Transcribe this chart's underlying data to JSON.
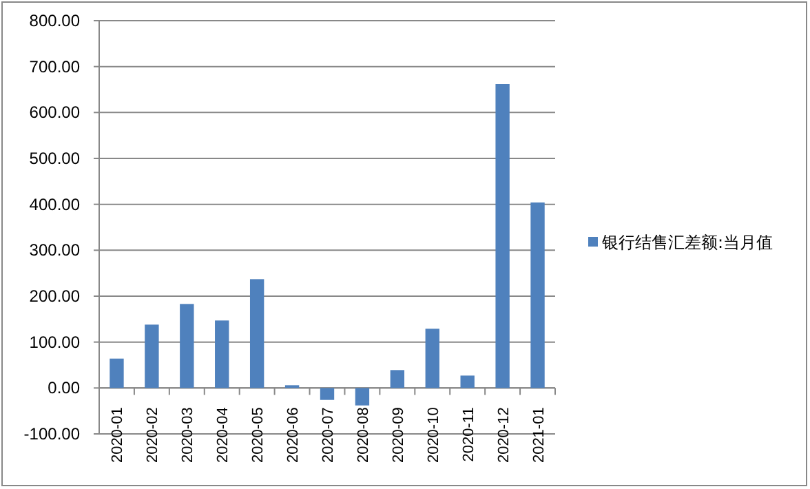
{
  "chart_data": {
    "type": "bar",
    "categories": [
      "2020-01",
      "2020-02",
      "2020-03",
      "2020-04",
      "2020-05",
      "2020-06",
      "2020-07",
      "2020-08",
      "2020-09",
      "2020-10",
      "2020-11",
      "2020-12",
      "2021-01"
    ],
    "series": [
      {
        "name": "银行结售汇差额:当月值",
        "color": "#4f81bd",
        "values": [
          64,
          138,
          183,
          147,
          237,
          6,
          -26,
          -38,
          39,
          129,
          27,
          662,
          404
        ]
      }
    ],
    "ylim": [
      -100,
      800
    ],
    "yticks": [
      {
        "value": -100,
        "label": "-100.00"
      },
      {
        "value": 0,
        "label": "0.00"
      },
      {
        "value": 100,
        "label": "100.00"
      },
      {
        "value": 200,
        "label": "200.00"
      },
      {
        "value": 300,
        "label": "300.00"
      },
      {
        "value": 400,
        "label": "400.00"
      },
      {
        "value": 500,
        "label": "500.00"
      },
      {
        "value": 600,
        "label": "600.00"
      },
      {
        "value": 700,
        "label": "700.00"
      },
      {
        "value": 800,
        "label": "800.00"
      }
    ],
    "grid": "y",
    "legend": "right"
  }
}
